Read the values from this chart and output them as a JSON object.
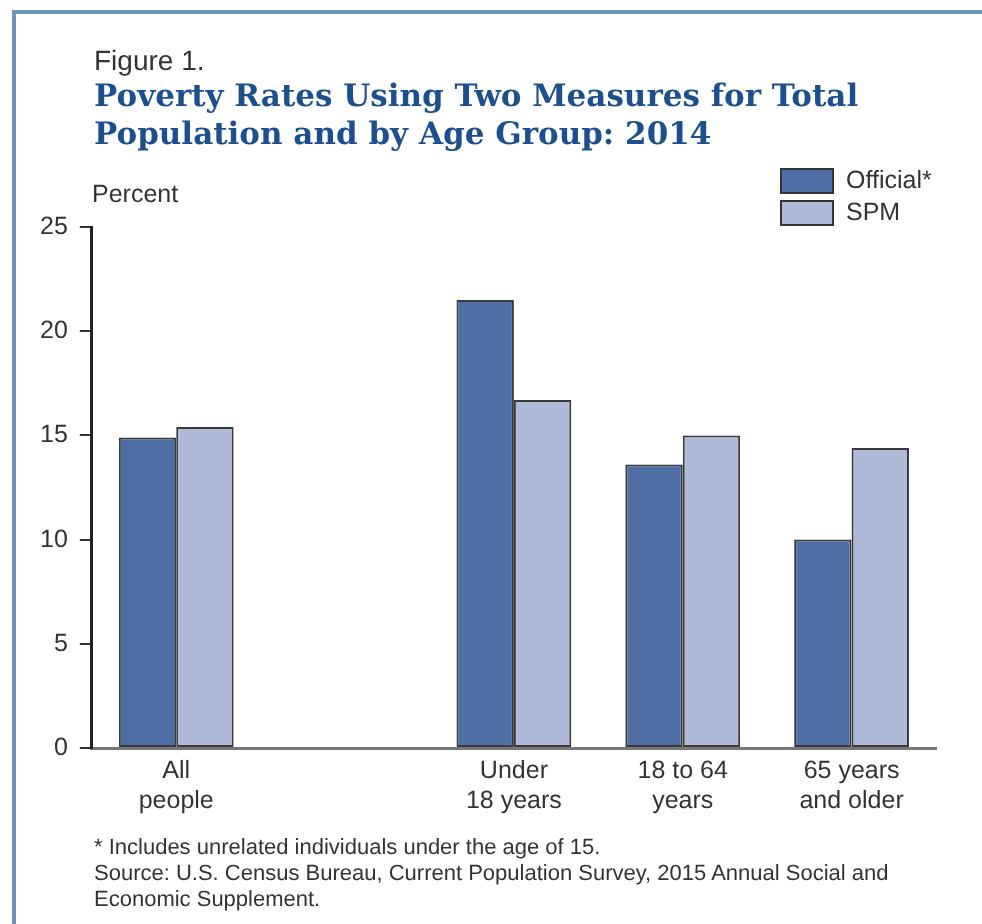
{
  "chart_data": {
    "type": "bar",
    "subtitle": "Figure 1.",
    "title": "Poverty Rates Using Two Measures for Total\nPopulation and by Age Group: 2014",
    "ylabel": "Percent",
    "categories": [
      "All\npeople",
      null,
      "Under\n18 years",
      "18 to 64\nyears",
      "65 years\nand older"
    ],
    "series": [
      {
        "name": "Official*",
        "color": "#4f6ea5",
        "values": [
          14.9,
          null,
          21.5,
          13.6,
          10.0
        ]
      },
      {
        "name": "SPM",
        "color": "#b0b9d8",
        "values": [
          15.4,
          null,
          16.7,
          15.0,
          14.4
        ]
      }
    ],
    "ylim": [
      0,
      25
    ],
    "yticks": [
      0,
      5,
      10,
      15,
      20,
      25
    ],
    "grid": false,
    "legend": "top right",
    "annotations": [
      "* Includes unrelated individuals under the age of 15.",
      "Source: U.S. Census Bureau, Current Population Survey, 2015 Annual Social and Economic Supplement."
    ]
  }
}
